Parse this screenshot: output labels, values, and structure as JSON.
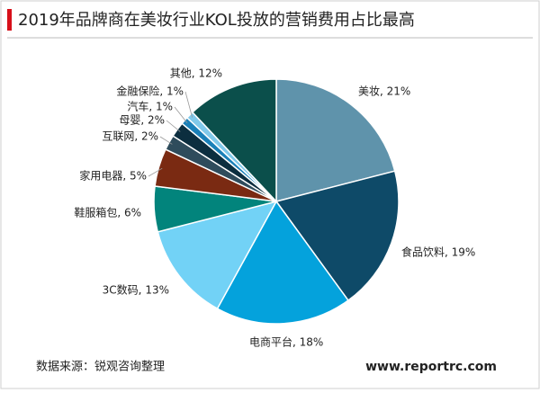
{
  "chart_data": {
    "type": "pie",
    "title": "2019年品牌商在美妆行业KOL投放的营销费用占比最高",
    "values": [
      21,
      19,
      18,
      13,
      6,
      5,
      2,
      2,
      1,
      1,
      12
    ],
    "value_labels": [
      "美妆, 21%",
      "食品饮料, 19%",
      "电商平台, 18%",
      "3C数码, 13%",
      "鞋服箱包, 6%",
      "家用电器, 5%",
      "互联网, 2%",
      "母婴, 2%",
      "汽车, 1%",
      "金融保险, 1%",
      "其他, 12%"
    ],
    "colors": [
      "#5f93ab",
      "#0e4a68",
      "#04a2dc",
      "#72d2f6",
      "#02847c",
      "#7a2a12",
      "#2f4c5c",
      "#0c2e3f",
      "#1a80b8",
      "#80c9ea",
      "#0b4f4b"
    ],
    "source": "数据来源：锐观咨询整理",
    "website": "www.reportrc.com"
  }
}
